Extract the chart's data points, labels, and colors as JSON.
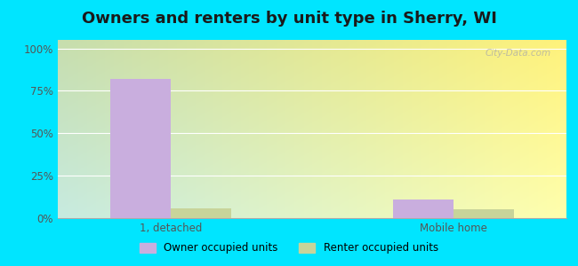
{
  "title": "Owners and renters by unit type in Sherry, WI",
  "categories": [
    "1, detached",
    "Mobile home"
  ],
  "owner_values": [
    82,
    11
  ],
  "renter_values": [
    6,
    5
  ],
  "owner_color": "#c9aede",
  "renter_color": "#c8d49a",
  "owner_label": "Owner occupied units",
  "renter_label": "Renter occupied units",
  "yticks": [
    0,
    25,
    50,
    75,
    100
  ],
  "ytick_labels": [
    "0%",
    "25%",
    "50%",
    "75%",
    "100%"
  ],
  "ylim": [
    0,
    105
  ],
  "outer_bg": "#00e5ff",
  "watermark": "City-Data.com",
  "title_fontsize": 13,
  "bar_width": 0.32,
  "group_positions": [
    1.0,
    2.5
  ]
}
